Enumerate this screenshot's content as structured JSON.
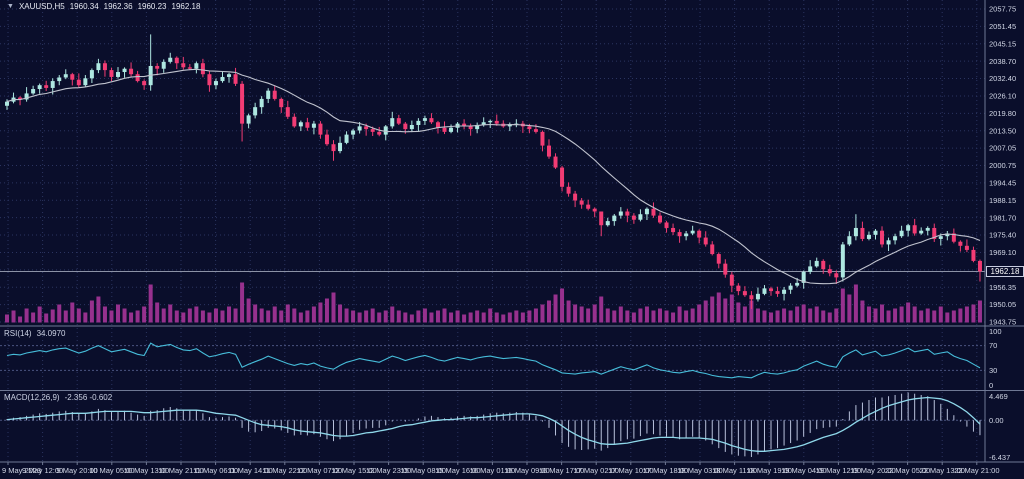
{
  "window": {
    "symbol": "XAUUSD,H5",
    "open": "1960.34",
    "high": "1962.36",
    "low": "1960.23",
    "close": "1962.18",
    "dropdown_icon": "▼"
  },
  "price_axis": {
    "labels": [
      "2057.75",
      "2051.45",
      "2045.15",
      "2038.70",
      "2032.40",
      "2026.10",
      "2019.80",
      "2013.50",
      "2007.05",
      "2000.75",
      "1994.45",
      "1988.15",
      "1981.70",
      "1975.40",
      "1969.10",
      "1956.35",
      "1950.05",
      "1943.75"
    ],
    "current_price": "1962.18"
  },
  "time_axis": {
    "labels": [
      "9 May 2023",
      "9 May 12:00",
      "9 May 20:00",
      "10 May 05:00",
      "10 May 13:00",
      "10 May 21:00",
      "11 May 06:00",
      "11 May 14:00",
      "11 May 22:00",
      "12 May 07:00",
      "12 May 15:00",
      "12 May 23:00",
      "15 May 08:00",
      "15 May 16:00",
      "16 May 01:00",
      "16 May 09:00",
      "16 May 17:00",
      "17 May 02:00",
      "17 May 10:00",
      "17 May 18:00",
      "18 May 03:00",
      "18 May 11:00",
      "18 May 19:00",
      "19 May 04:00",
      "19 May 12:00",
      "19 May 20:00",
      "22 May 05:00",
      "22 May 13:00",
      "22 May 21:00"
    ]
  },
  "indicators": {
    "rsi": {
      "label": "RSI(14)",
      "value": "34.0970",
      "scale": [
        "100",
        "70",
        "30",
        "0"
      ],
      "levels": [
        70,
        30
      ]
    },
    "macd": {
      "label": "MACD(12,26,9)",
      "values": "-2.356 -0.602",
      "scale": [
        "4.469",
        "0.00",
        "-6.437"
      ]
    }
  },
  "colors": {
    "background": "#0a0e2b",
    "bull": "#aee8e1",
    "bear": "#f23c74",
    "ma": "#c0c3ce",
    "volume": "#97318e",
    "rsi_line": "#46bcd9",
    "level_dotted": "#4a5480",
    "macd_hist": "#b9c2dc",
    "macd_signal": "#8fd8ea",
    "grid": "#2b3460",
    "separator": "#6f7894",
    "axis_text": "#d2d7e6",
    "price_line": "#b8bdd0"
  },
  "chart_data": {
    "type": "candlestick",
    "title": "XAUUSD,H5",
    "price_ylim": [
      1943.75,
      2057.75
    ],
    "current_price": 1962.18,
    "first_open": 2022.5,
    "ma_period": 16,
    "closes": [
      2024.0,
      2025.5,
      2024.8,
      2027.0,
      2028.6,
      2030.0,
      2029.0,
      2031.5,
      2032.8,
      2034.0,
      2032.0,
      2030.0,
      2032.5,
      2035.5,
      2038.0,
      2035.5,
      2033.0,
      2034.8,
      2036.0,
      2034.0,
      2031.5,
      2030.0,
      2037.0,
      2036.0,
      2038.5,
      2040.0,
      2038.0,
      2036.5,
      2036.0,
      2038.0,
      2034.0,
      2030.0,
      2031.5,
      2033.0,
      2034.0,
      2030.5,
      2016.0,
      2019.0,
      2022.0,
      2025.0,
      2028.0,
      2025.0,
      2022.0,
      2018.5,
      2015.0,
      2016.5,
      2014.5,
      2016.0,
      2012.0,
      2008.5,
      2006.0,
      2009.0,
      2012.0,
      2013.5,
      2015.0,
      2014.0,
      2013.0,
      2012.0,
      2015.0,
      2018.0,
      2016.0,
      2014.0,
      2015.5,
      2017.0,
      2018.0,
      2016.5,
      2014.5,
      2013.0,
      2014.5,
      2016.0,
      2015.0,
      2014.0,
      2015.5,
      2016.5,
      2017.0,
      2016.0,
      2015.0,
      2015.8,
      2016.0,
      2015.0,
      2014.0,
      2013.0,
      2008.0,
      2004.0,
      2000.0,
      1993.0,
      1990.5,
      1988.0,
      1986.5,
      1985.0,
      1984.0,
      1979.0,
      1980.5,
      1982.5,
      1984.0,
      1982.5,
      1981.0,
      1983.0,
      1985.0,
      1982.5,
      1980.0,
      1978.0,
      1976.5,
      1975.0,
      1976.0,
      1977.0,
      1974.5,
      1972.0,
      1968.5,
      1965.0,
      1961.0,
      1957.0,
      1955.0,
      1953.5,
      1952.0,
      1954.0,
      1956.0,
      1955.0,
      1954.0,
      1955.5,
      1957.0,
      1958.0,
      1962.0,
      1964.0,
      1966.0,
      1963.0,
      1961.5,
      1960.0,
      1972.0,
      1975.0,
      1978.0,
      1974.0,
      1975.5,
      1977.0,
      1972.0,
      1973.5,
      1975.0,
      1977.0,
      1979.0,
      1976.0,
      1977.0,
      1978.0,
      1974.0,
      1975.0,
      1976.0,
      1973.0,
      1971.5,
      1970.0,
      1966.0,
      1962.2
    ],
    "wick_hi_cycle": [
      0.9,
      1.8,
      0.5,
      2.3,
      1.2,
      0.6,
      1.6,
      1.0
    ],
    "wick_lo_cycle": [
      1.5,
      0.6,
      2.1,
      0.8,
      0.5,
      1.7,
      1.1,
      2.4
    ],
    "wick_overrides": {
      "22": [
        2048.5,
        2028.0
      ],
      "36": [
        2031.5,
        2009.5
      ],
      "50": [
        2010.0,
        2002.5
      ],
      "91": [
        1981.5,
        1975.0
      ],
      "114": [
        1955.0,
        1948.5
      ],
      "130": [
        1983.0,
        1973.5
      ],
      "149": [
        1966.5,
        1958.5
      ]
    },
    "volume": {
      "type": "bar",
      "values": [
        8,
        12,
        6,
        14,
        10,
        16,
        9,
        13,
        18,
        12,
        20,
        14,
        10,
        22,
        26,
        16,
        12,
        18,
        14,
        10,
        12,
        16,
        38,
        20,
        14,
        18,
        12,
        10,
        14,
        16,
        12,
        10,
        14,
        12,
        16,
        14,
        40,
        24,
        18,
        14,
        12,
        16,
        12,
        18,
        14,
        10,
        12,
        16,
        20,
        24,
        30,
        18,
        14,
        12,
        10,
        12,
        14,
        10,
        12,
        16,
        12,
        10,
        8,
        12,
        14,
        10,
        12,
        14,
        10,
        12,
        8,
        10,
        12,
        10,
        14,
        10,
        8,
        10,
        12,
        10,
        12,
        14,
        18,
        22,
        28,
        34,
        22,
        18,
        16,
        14,
        18,
        26,
        14,
        12,
        16,
        12,
        10,
        14,
        16,
        12,
        14,
        12,
        10,
        16,
        12,
        14,
        18,
        22,
        26,
        30,
        24,
        28,
        20,
        16,
        22,
        14,
        12,
        10,
        12,
        14,
        12,
        16,
        18,
        14,
        16,
        12,
        10,
        14,
        34,
        28,
        38,
        22,
        16,
        14,
        18,
        12,
        14,
        16,
        20,
        16,
        12,
        14,
        12,
        16,
        10,
        12,
        14,
        16,
        18,
        22
      ]
    },
    "rsi": {
      "type": "line",
      "period": 14,
      "last": 34.097,
      "ylim": [
        0,
        100
      ],
      "levels": [
        70,
        30
      ],
      "values": [
        54,
        56,
        55,
        58,
        60,
        62,
        60,
        63,
        65,
        66,
        62,
        58,
        61,
        66,
        70,
        65,
        60,
        62,
        64,
        60,
        56,
        54,
        74,
        68,
        70,
        72,
        67,
        63,
        62,
        65,
        58,
        52,
        54,
        57,
        59,
        56,
        35,
        40,
        44,
        48,
        53,
        49,
        45,
        41,
        38,
        41,
        39,
        42,
        37,
        34,
        32,
        38,
        43,
        46,
        49,
        47,
        45,
        43,
        48,
        53,
        50,
        46,
        49,
        52,
        54,
        51,
        47,
        45,
        48,
        51,
        49,
        47,
        50,
        52,
        53,
        51,
        49,
        50,
        51,
        49,
        47,
        45,
        39,
        35,
        31,
        26,
        25,
        24,
        26,
        27,
        28,
        24,
        28,
        32,
        36,
        33,
        31,
        35,
        39,
        34,
        31,
        29,
        27,
        26,
        28,
        30,
        27,
        25,
        22,
        20,
        19,
        18,
        20,
        19,
        18,
        23,
        27,
        25,
        24,
        26,
        29,
        31,
        37,
        41,
        45,
        40,
        37,
        35,
        52,
        58,
        63,
        55,
        58,
        61,
        53,
        55,
        58,
        62,
        66,
        60,
        62,
        64,
        56,
        58,
        60,
        53,
        49,
        46,
        40,
        34
      ]
    },
    "macd": {
      "type": "histogram+line",
      "params": "12,26,9",
      "last_main": -2.356,
      "last_signal": -0.602,
      "ylim": [
        -6.437,
        4.469
      ],
      "main": [
        0.2,
        0.4,
        0.5,
        0.7,
        0.9,
        1.1,
        1.0,
        1.2,
        1.4,
        1.5,
        1.3,
        1.0,
        1.1,
        1.4,
        1.8,
        1.6,
        1.3,
        1.4,
        1.5,
        1.2,
        0.9,
        0.7,
        1.5,
        1.6,
        1.9,
        2.1,
        1.9,
        1.6,
        1.5,
        1.6,
        1.1,
        0.5,
        0.4,
        0.5,
        0.6,
        0.4,
        -1.2,
        -1.8,
        -1.9,
        -1.7,
        -1.2,
        -1.3,
        -1.6,
        -2.0,
        -2.4,
        -2.3,
        -2.4,
        -2.2,
        -2.6,
        -3.0,
        -3.3,
        -3.0,
        -2.5,
        -2.0,
        -1.5,
        -1.3,
        -1.2,
        -1.2,
        -0.8,
        -0.2,
        0.0,
        -0.2,
        0.0,
        0.3,
        0.6,
        0.7,
        0.5,
        0.3,
        0.4,
        0.6,
        0.7,
        0.6,
        0.7,
        0.9,
        1.1,
        1.2,
        1.1,
        1.2,
        1.3,
        1.2,
        1.0,
        0.7,
        -0.2,
        -1.2,
        -2.4,
        -3.6,
        -4.2,
        -4.6,
        -4.7,
        -4.6,
        -4.5,
        -4.8,
        -4.4,
        -3.9,
        -3.3,
        -3.0,
        -2.9,
        -2.5,
        -2.1,
        -2.2,
        -2.4,
        -2.6,
        -2.8,
        -3.0,
        -2.8,
        -2.6,
        -2.8,
        -3.2,
        -3.8,
        -4.4,
        -5.0,
        -5.4,
        -5.6,
        -5.7,
        -5.8,
        -5.4,
        -4.9,
        -4.6,
        -4.4,
        -4.0,
        -3.6,
        -3.2,
        -2.6,
        -2.0,
        -1.4,
        -1.2,
        -1.1,
        -1.0,
        0.2,
        1.4,
        2.4,
        2.8,
        3.2,
        3.6,
        3.6,
        3.8,
        4.0,
        4.2,
        4.4,
        4.2,
        4.0,
        3.8,
        3.2,
        2.6,
        1.8,
        0.8,
        -0.2,
        -1.0,
        -1.8,
        -2.356
      ],
      "signal": [
        0.1,
        0.2,
        0.3,
        0.4,
        0.5,
        0.6,
        0.7,
        0.8,
        0.9,
        1.0,
        1.1,
        1.1,
        1.1,
        1.2,
        1.3,
        1.4,
        1.4,
        1.4,
        1.4,
        1.4,
        1.3,
        1.2,
        1.2,
        1.3,
        1.4,
        1.5,
        1.6,
        1.6,
        1.6,
        1.6,
        1.5,
        1.3,
        1.1,
        1.0,
        0.9,
        0.8,
        0.4,
        0.0,
        -0.4,
        -0.7,
        -0.8,
        -0.9,
        -1.0,
        -1.2,
        -1.5,
        -1.7,
        -1.8,
        -1.9,
        -2.0,
        -2.2,
        -2.4,
        -2.5,
        -2.5,
        -2.4,
        -2.2,
        -2.0,
        -1.9,
        -1.7,
        -1.5,
        -1.3,
        -1.0,
        -0.8,
        -0.7,
        -0.5,
        -0.3,
        -0.1,
        0.0,
        0.1,
        0.1,
        0.2,
        0.3,
        0.4,
        0.4,
        0.5,
        0.6,
        0.7,
        0.8,
        0.9,
        1.0,
        1.0,
        1.0,
        0.9,
        0.7,
        0.3,
        -0.2,
        -0.9,
        -1.6,
        -2.2,
        -2.7,
        -3.1,
        -3.4,
        -3.7,
        -3.8,
        -3.8,
        -3.7,
        -3.6,
        -3.4,
        -3.2,
        -3.0,
        -2.8,
        -2.7,
        -2.7,
        -2.7,
        -2.8,
        -2.8,
        -2.8,
        -2.8,
        -2.9,
        -3.0,
        -3.3,
        -3.6,
        -4.0,
        -4.3,
        -4.6,
        -4.8,
        -4.9,
        -4.9,
        -4.8,
        -4.7,
        -4.6,
        -4.4,
        -4.2,
        -3.9,
        -3.5,
        -3.1,
        -2.7,
        -2.4,
        -2.1,
        -1.6,
        -1.0,
        -0.3,
        0.3,
        0.9,
        1.4,
        1.9,
        2.3,
        2.6,
        2.9,
        3.2,
        3.4,
        3.5,
        3.6,
        3.5,
        3.4,
        3.1,
        2.6,
        2.0,
        1.3,
        0.4,
        -0.602
      ]
    }
  }
}
